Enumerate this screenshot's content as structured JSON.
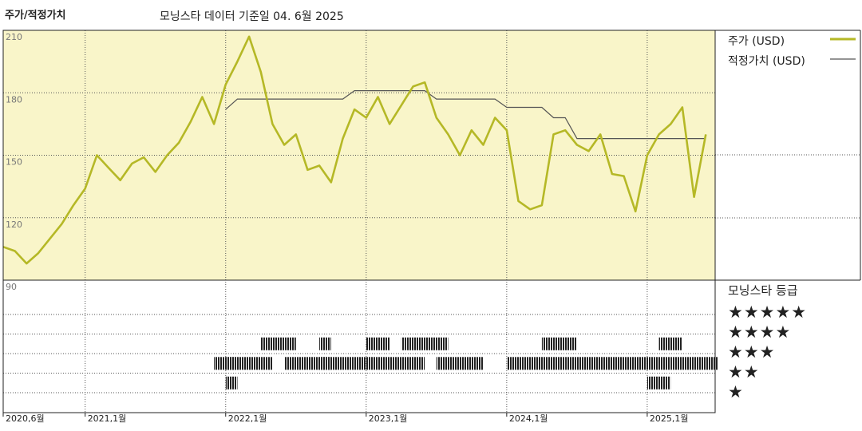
{
  "header": {
    "title": "주가/적정가치",
    "subtitle": "모닝스타 데이터 기준일 04. 6월 2025"
  },
  "legend": [
    {
      "label": "주가 (USD)",
      "color": "#b5b826"
    },
    {
      "label": "적정가치 (USD)",
      "color": "#555555"
    }
  ],
  "rating_panel": {
    "title": "모닝스타 등급",
    "rows": [
      "★★★★★",
      "★★★★",
      "★★★",
      "★★",
      "★"
    ]
  },
  "chart_data": {
    "type": "line",
    "title": "주가/적정가치",
    "x_labels": [
      "2020,6월",
      "2021,1월",
      "2022,1월",
      "2023,1월",
      "2024,1월",
      "2025,1월"
    ],
    "x_label_dates": [
      "2020-06",
      "2021-01",
      "2022-01",
      "2023-01",
      "2024-01",
      "2025-01"
    ],
    "x_range": [
      "2020-06",
      "2025-06"
    ],
    "y_ticks": [
      90,
      120,
      150,
      180,
      210
    ],
    "ylim": [
      90,
      210
    ],
    "grid": true,
    "series": [
      {
        "name": "주가 (USD)",
        "color": "#b5b826",
        "points": [
          [
            "2020-06",
            106
          ],
          [
            "2020-07",
            104
          ],
          [
            "2020-08",
            98
          ],
          [
            "2020-09",
            103
          ],
          [
            "2020-10",
            110
          ],
          [
            "2020-11",
            117
          ],
          [
            "2020-12",
            126
          ],
          [
            "2021-01",
            134
          ],
          [
            "2021-02",
            150
          ],
          [
            "2021-03",
            144
          ],
          [
            "2021-04",
            138
          ],
          [
            "2021-05",
            146
          ],
          [
            "2021-06",
            149
          ],
          [
            "2021-07",
            142
          ],
          [
            "2021-08",
            150
          ],
          [
            "2021-09",
            156
          ],
          [
            "2021-10",
            166
          ],
          [
            "2021-11",
            178
          ],
          [
            "2021-12",
            165
          ],
          [
            "2022-01",
            184
          ],
          [
            "2022-02",
            195
          ],
          [
            "2022-03",
            207
          ],
          [
            "2022-04",
            190
          ],
          [
            "2022-05",
            165
          ],
          [
            "2022-06",
            155
          ],
          [
            "2022-07",
            160
          ],
          [
            "2022-08",
            143
          ],
          [
            "2022-09",
            145
          ],
          [
            "2022-10",
            137
          ],
          [
            "2022-11",
            158
          ],
          [
            "2022-12",
            172
          ],
          [
            "2023-01",
            168
          ],
          [
            "2023-02",
            178
          ],
          [
            "2023-03",
            165
          ],
          [
            "2023-04",
            174
          ],
          [
            "2023-05",
            183
          ],
          [
            "2023-06",
            185
          ],
          [
            "2023-07",
            168
          ],
          [
            "2023-08",
            160
          ],
          [
            "2023-09",
            150
          ],
          [
            "2023-10",
            162
          ],
          [
            "2023-11",
            155
          ],
          [
            "2023-12",
            168
          ],
          [
            "2024-01",
            162
          ],
          [
            "2024-02",
            128
          ],
          [
            "2024-03",
            124
          ],
          [
            "2024-04",
            126
          ],
          [
            "2024-05",
            160
          ],
          [
            "2024-06",
            162
          ],
          [
            "2024-07",
            155
          ],
          [
            "2024-08",
            152
          ],
          [
            "2024-09",
            160
          ],
          [
            "2024-10",
            141
          ],
          [
            "2024-11",
            140
          ],
          [
            "2024-12",
            123
          ],
          [
            "2025-01",
            150
          ],
          [
            "2025-02",
            160
          ],
          [
            "2025-03",
            165
          ],
          [
            "2025-04",
            173
          ],
          [
            "2025-05",
            130
          ],
          [
            "2025-06",
            160
          ]
        ]
      },
      {
        "name": "적정가치 (USD)",
        "color": "#555555",
        "points": [
          [
            "2022-01",
            172
          ],
          [
            "2022-02",
            177
          ],
          [
            "2022-11",
            177
          ],
          [
            "2022-12",
            181
          ],
          [
            "2023-06",
            181
          ],
          [
            "2023-07",
            177
          ],
          [
            "2023-12",
            177
          ],
          [
            "2024-01",
            173
          ],
          [
            "2024-04",
            173
          ],
          [
            "2024-05",
            168
          ],
          [
            "2024-06",
            168
          ],
          [
            "2024-07",
            158
          ],
          [
            "2025-06",
            158
          ]
        ]
      }
    ],
    "rating_history": {
      "levels": [
        "★★★★★",
        "★★★★",
        "★★★",
        "★★",
        "★"
      ],
      "segments": [
        {
          "stars": 3,
          "start": "2021-12",
          "end": "2022-01"
        },
        {
          "stars": 3,
          "start": "2022-01",
          "end": "2022-04"
        },
        {
          "stars": 2,
          "start": "2022-01",
          "end": "2022-01"
        },
        {
          "stars": 4,
          "start": "2022-04",
          "end": "2022-06"
        },
        {
          "stars": 4,
          "start": "2022-09",
          "end": "2022-09"
        },
        {
          "stars": 3,
          "start": "2022-06",
          "end": "2022-09"
        },
        {
          "stars": 3,
          "start": "2022-09",
          "end": "2023-02"
        },
        {
          "stars": 4,
          "start": "2023-01",
          "end": "2023-02"
        },
        {
          "stars": 3,
          "start": "2023-03",
          "end": "2023-05"
        },
        {
          "stars": 4,
          "start": "2023-04",
          "end": "2023-07"
        },
        {
          "stars": 3,
          "start": "2023-07",
          "end": "2023-10"
        },
        {
          "stars": 3,
          "start": "2024-01",
          "end": "2024-05"
        },
        {
          "stars": 4,
          "start": "2024-04",
          "end": "2024-06"
        },
        {
          "stars": 3,
          "start": "2024-06",
          "end": "2024-06"
        },
        {
          "stars": 3,
          "start": "2024-07",
          "end": "2024-12"
        },
        {
          "stars": 3,
          "start": "2025-01",
          "end": "2025-02"
        },
        {
          "stars": 2,
          "start": "2025-01",
          "end": "2025-02"
        },
        {
          "stars": 4,
          "start": "2025-02",
          "end": "2025-03"
        },
        {
          "stars": 3,
          "start": "2025-03",
          "end": "2025-06"
        }
      ]
    }
  }
}
